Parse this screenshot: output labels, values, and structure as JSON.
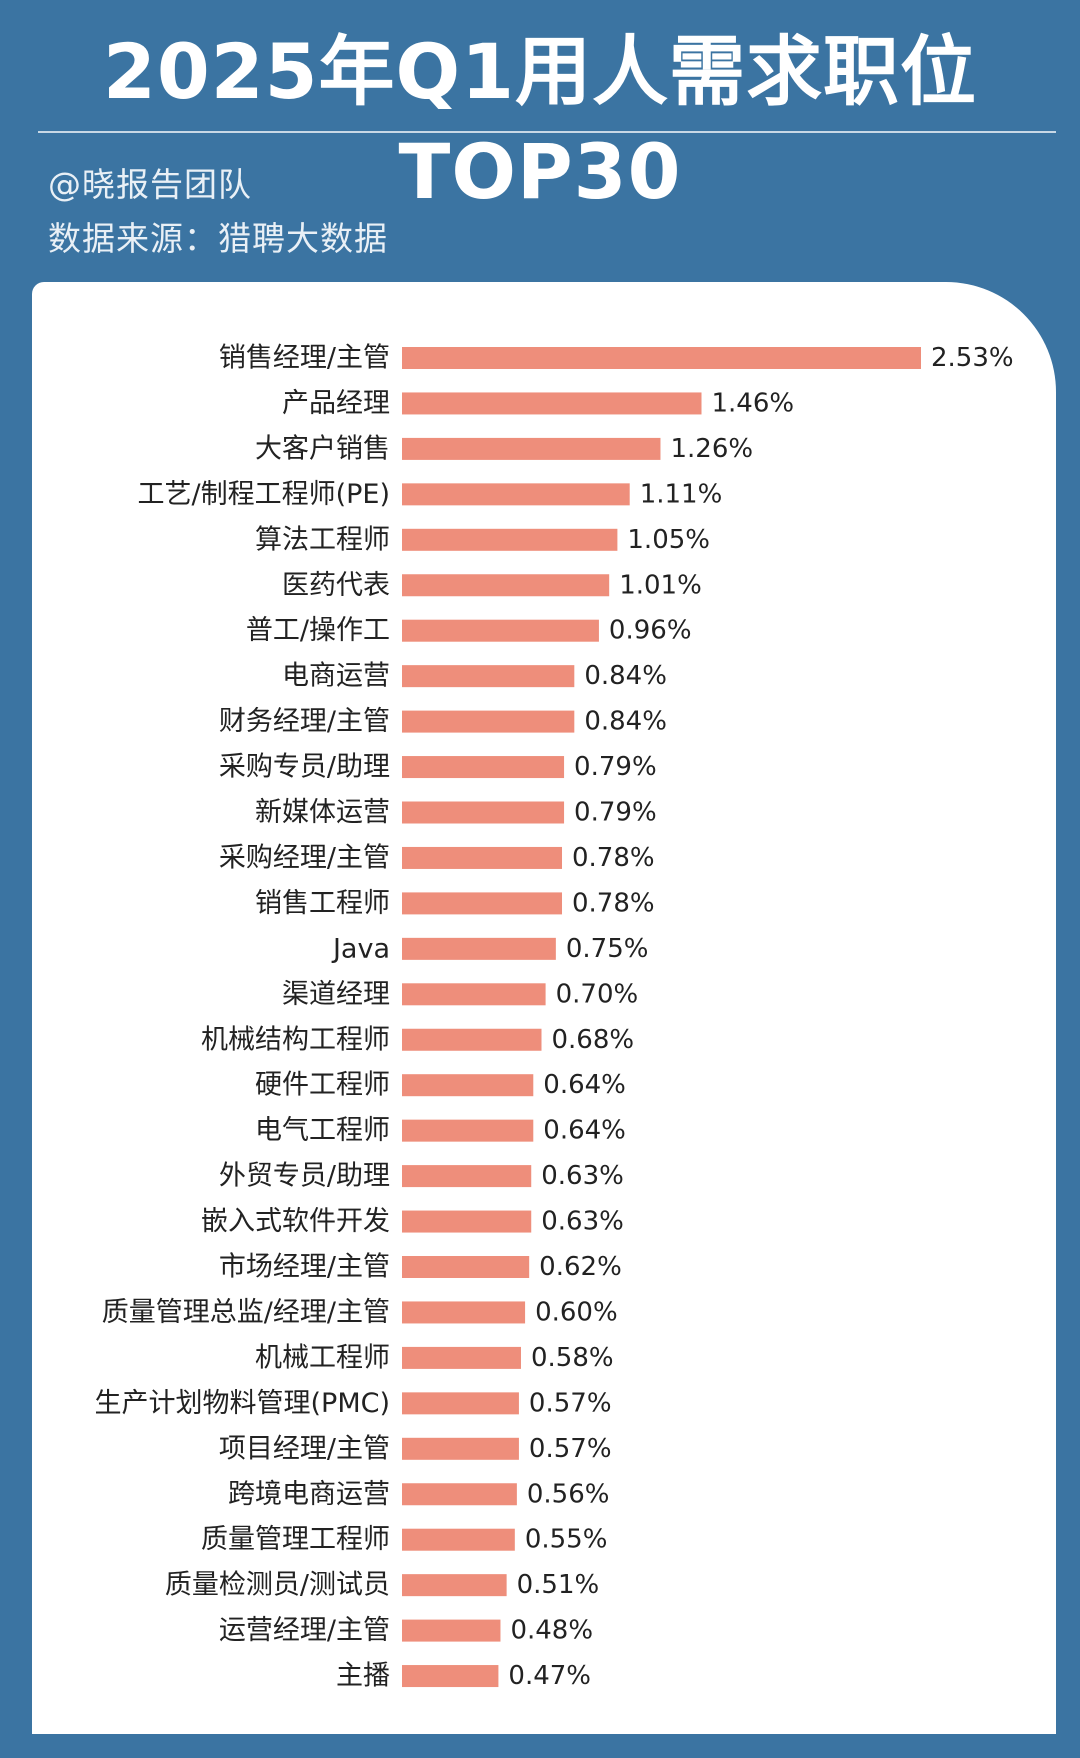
{
  "header": {
    "title": "2025年Q1用人需求职位TOP30",
    "author": "@晓报告团队",
    "source": "数据来源：猎聘大数据"
  },
  "colors": {
    "background": "#3b74a2",
    "bar": "#ee8e7b",
    "panel": "#ffffff",
    "text": "#222222"
  },
  "chart_data": {
    "type": "bar",
    "orientation": "horizontal",
    "categories": [
      "销售经理/主管",
      "产品经理",
      "大客户销售",
      "工艺/制程工程师(PE)",
      "算法工程师",
      "医药代表",
      "普工/操作工",
      "电商运营",
      "财务经理/主管",
      "采购专员/助理",
      "新媒体运营",
      "采购经理/主管",
      "销售工程师",
      "Java",
      "渠道经理",
      "机械结构工程师",
      "硬件工程师",
      "电气工程师",
      "外贸专员/助理",
      "嵌入式软件开发",
      "市场经理/主管",
      "质量管理总监/经理/主管",
      "机械工程师",
      "生产计划物料管理(PMC)",
      "项目经理/主管",
      "跨境电商运营",
      "质量管理工程师",
      "质量检测员/测试员",
      "运营经理/主管",
      "主播"
    ],
    "values": [
      2.53,
      1.46,
      1.26,
      1.11,
      1.05,
      1.01,
      0.96,
      0.84,
      0.84,
      0.79,
      0.79,
      0.78,
      0.78,
      0.75,
      0.7,
      0.68,
      0.64,
      0.64,
      0.63,
      0.63,
      0.62,
      0.6,
      0.58,
      0.57,
      0.57,
      0.56,
      0.55,
      0.51,
      0.48,
      0.47
    ],
    "labels": [
      "2.53%",
      "1.46%",
      "1.26%",
      "1.11%",
      "1.05%",
      "1.01%",
      "0.96%",
      "0.84%",
      "0.84%",
      "0.79%",
      "0.79%",
      "0.78%",
      "0.78%",
      "0.75%",
      "0.70%",
      "0.68%",
      "0.64%",
      "0.64%",
      "0.63%",
      "0.63%",
      "0.62%",
      "0.60%",
      "0.58%",
      "0.57%",
      "0.57%",
      "0.56%",
      "0.55%",
      "0.51%",
      "0.48%",
      "0.47%"
    ],
    "title": "",
    "xlabel": "",
    "ylabel": "",
    "xlim": [
      0,
      2.53
    ],
    "grid": false,
    "legend": "none"
  }
}
